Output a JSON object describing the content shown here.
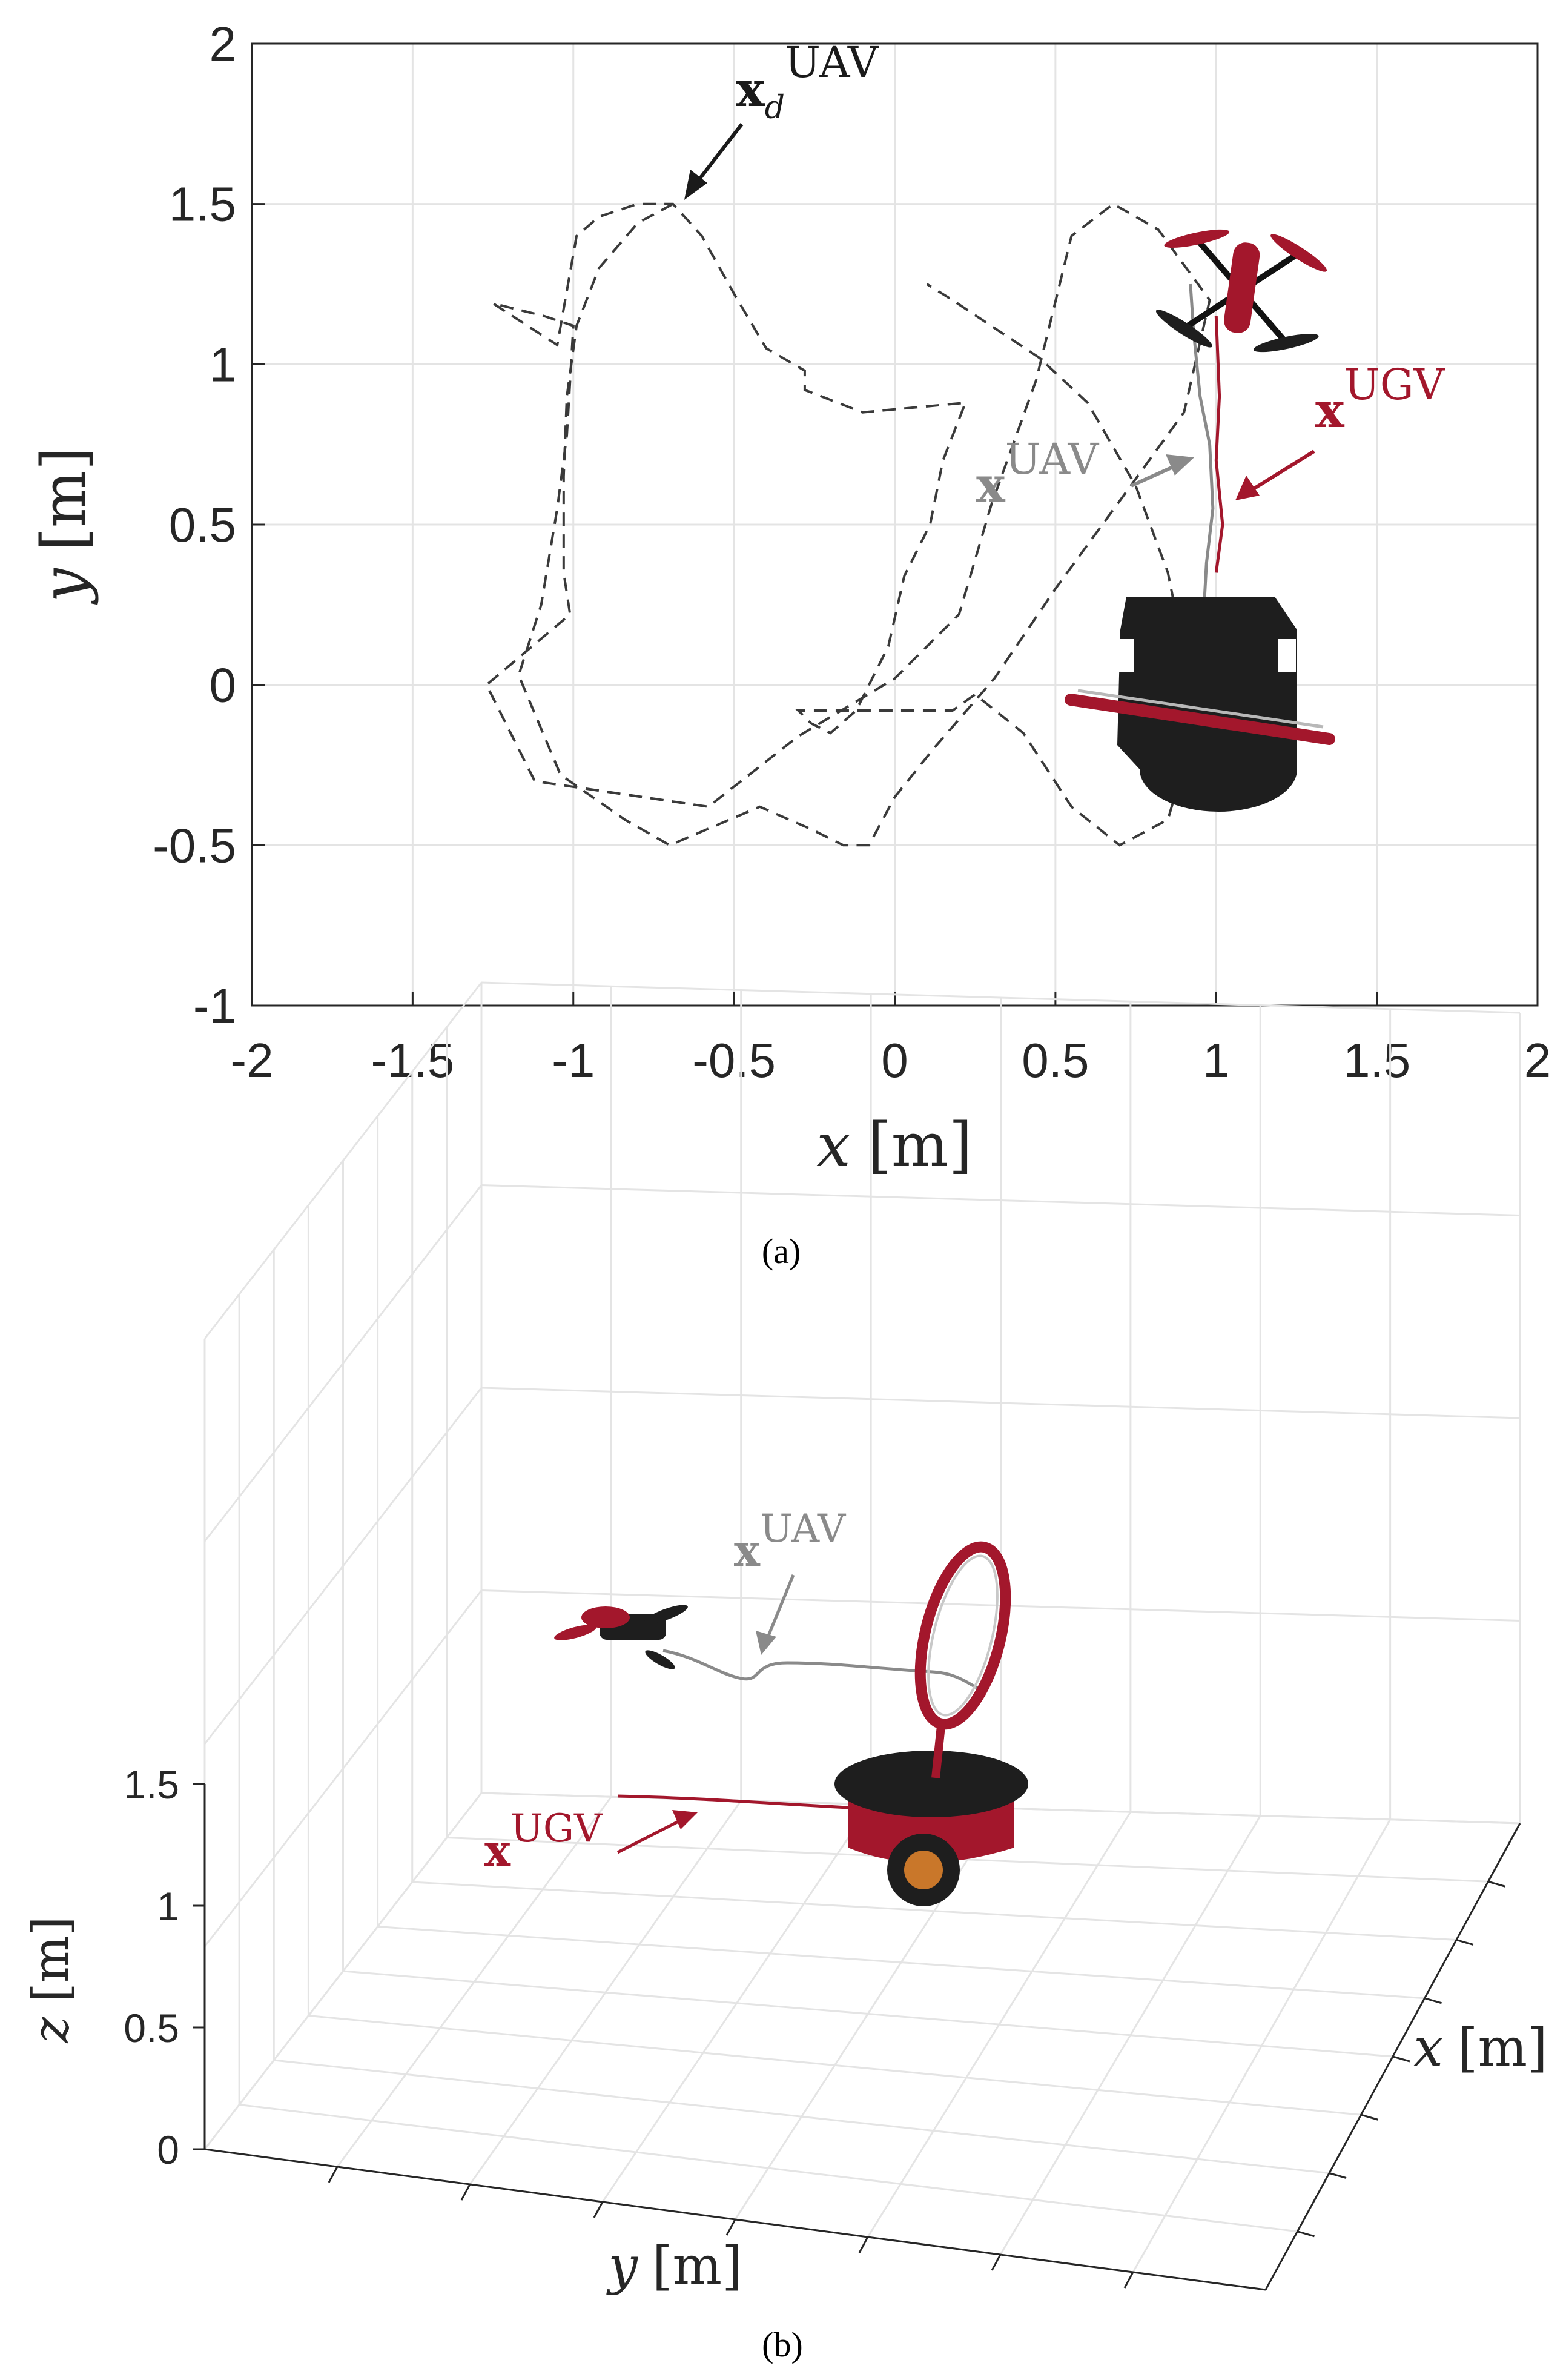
{
  "colors": {
    "ugv": "#a3172c",
    "uav": "#8a8a8a",
    "desired": "#3a3a3a",
    "robot_body": "#1e1e1e",
    "grid": "#e4e4e4",
    "axis": "#262626"
  },
  "chart_data": [
    {
      "panel": "(a)",
      "type": "line",
      "view": "top (x-y plane)",
      "xlabel": {
        "var": "x",
        "unit": "[m]"
      },
      "ylabel": {
        "var": "y",
        "unit": "[m]"
      },
      "xlim": [
        -2,
        2
      ],
      "ylim": [
        -1,
        2
      ],
      "xticks": [
        "-2",
        "-1.5",
        "-1",
        "-0.5",
        "0",
        "0.5",
        "1",
        "1.5",
        "2"
      ],
      "yticks": [
        "-1",
        "-0.5",
        "0",
        "0.5",
        "1",
        "1.5",
        "2"
      ],
      "grid": true,
      "annotations": [
        {
          "base": "x",
          "sub": "d",
          "sup": "UAV",
          "color": "desired"
        },
        {
          "base": "x",
          "sup": "UAV",
          "color": "uav"
        },
        {
          "base": "x",
          "sup": "UGV",
          "color": "ugv"
        }
      ],
      "series": [
        {
          "key": "desired",
          "style": "dashed",
          "x": [
            -0.69,
            -0.8,
            -0.92,
            -0.99,
            -1.02,
            -1.03,
            -1.03,
            -1.01,
            -1.27,
            -1.12,
            -0.58,
            -0.3,
            0.0,
            0.2,
            0.3,
            0.44,
            0.55,
            0.68,
            0.82,
            0.98,
            0.9,
            0.69,
            0.5,
            0.31,
            0.12,
            0.0,
            -0.08,
            -0.16,
            -0.26,
            -0.42,
            -0.7,
            -0.84,
            -1.04,
            -1.17,
            -1.1,
            -1.05,
            -1.02,
            -1.0,
            -1.09,
            -1.25,
            -1.05,
            -0.99,
            -0.92,
            -0.8,
            -0.69,
            -0.6,
            -0.5,
            -0.4,
            -0.28,
            -0.28,
            -0.1,
            0.22,
            0.15,
            0.11,
            0.03,
            -0.02,
            -0.12,
            -0.2,
            -0.26,
            -0.3,
            0.18,
            0.25,
            0.4,
            0.55,
            0.7,
            0.85,
            0.92,
            0.9,
            0.85,
            0.75,
            0.6,
            0.45,
            0.3,
            0.18,
            0.1
          ],
          "y": [
            1.5,
            1.44,
            1.3,
            1.12,
            0.9,
            0.65,
            0.35,
            0.22,
            0.0,
            -0.3,
            -0.38,
            -0.16,
            0.02,
            0.22,
            0.56,
            0.95,
            1.4,
            1.5,
            1.42,
            1.2,
            0.85,
            0.56,
            0.3,
            0.02,
            -0.2,
            -0.35,
            -0.5,
            -0.5,
            -0.45,
            -0.38,
            -0.5,
            -0.42,
            -0.28,
            0.03,
            0.25,
            0.55,
            0.78,
            1.12,
            1.15,
            1.19,
            1.06,
            1.4,
            1.46,
            1.5,
            1.5,
            1.4,
            1.22,
            1.05,
            0.98,
            0.92,
            0.85,
            0.88,
            0.7,
            0.5,
            0.34,
            0.12,
            -0.08,
            -0.15,
            -0.12,
            -0.08,
            -0.08,
            -0.03,
            -0.15,
            -0.38,
            -0.5,
            -0.42,
            -0.18,
            0.1,
            0.35,
            0.62,
            0.88,
            1.02,
            1.12,
            1.2,
            1.25
          ]
        },
        {
          "key": "uav",
          "style": "solid",
          "x": [
            0.92,
            0.93,
            0.95,
            0.98,
            0.99,
            0.97,
            0.96,
            0.97,
            0.95,
            0.94
          ],
          "y": [
            1.25,
            1.1,
            0.9,
            0.75,
            0.55,
            0.38,
            0.2,
            0.05,
            -0.1,
            -0.2
          ]
        },
        {
          "key": "ugv",
          "style": "solid",
          "x": [
            1.0,
            1.01,
            1.0,
            1.02,
            1.0
          ],
          "y": [
            1.15,
            0.9,
            0.7,
            0.5,
            0.35
          ]
        }
      ]
    },
    {
      "panel": "(b)",
      "type": "line",
      "view": "3d",
      "xlabel": {
        "var": "x",
        "unit": "[m]"
      },
      "ylabel": {
        "var": "y",
        "unit": "[m]"
      },
      "zlabel": {
        "var": "z",
        "unit": "[m]"
      },
      "zticks": [
        "0",
        "0.5",
        "1",
        "1.5"
      ],
      "grid": true,
      "annotations": [
        {
          "base": "x",
          "sup": "UAV",
          "color": "uav"
        },
        {
          "base": "x",
          "sup": "UGV",
          "color": "ugv"
        }
      ]
    }
  ]
}
